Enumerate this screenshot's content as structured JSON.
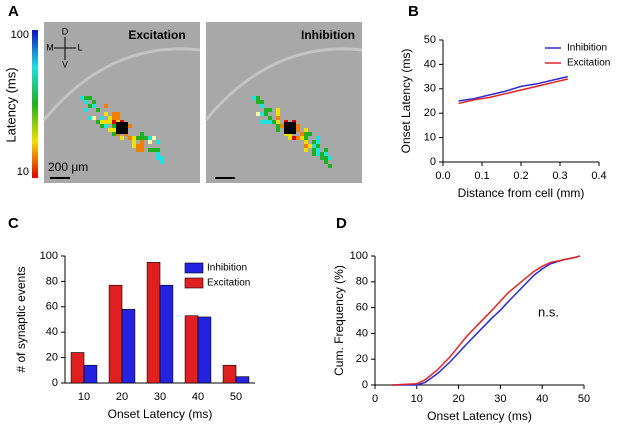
{
  "panel_labels": [
    "A",
    "B",
    "C",
    "D"
  ],
  "panel_a": {
    "colorbar_label": "Latency (ms)",
    "colorbar_max": "100",
    "colorbar_min": "10",
    "images": [
      "Excitation",
      "Inhibition"
    ],
    "compass": [
      "D",
      "M",
      "L",
      "V"
    ],
    "scale_bar": "200 μm"
  },
  "chart_data": [
    {
      "type": "line",
      "xlabel": "Distance from cell (mm)",
      "ylabel": "Onset Latency (ms)",
      "x": [
        0.04,
        0.08,
        0.12,
        0.16,
        0.2,
        0.24,
        0.28,
        0.32
      ],
      "series": [
        {
          "name": "Inhibition",
          "color": "#2b2bd6",
          "values": [
            25,
            26,
            27.5,
            29,
            31,
            32,
            33.5,
            35
          ]
        },
        {
          "name": "Excitation",
          "color": "#e02424",
          "values": [
            24,
            25.5,
            26.5,
            28,
            29.5,
            31,
            32.5,
            34
          ]
        }
      ],
      "xlim": [
        0,
        0.4
      ],
      "xticks": [
        {
          "value": 0,
          "label": "0.0"
        },
        0.1,
        0.2,
        0.3,
        0.4
      ],
      "ylim": [
        0,
        50
      ],
      "yticks": [
        0,
        10,
        20,
        30,
        40,
        50
      ],
      "legend": "upper right"
    },
    {
      "type": "bar",
      "xlabel": "Onset Latency (ms)",
      "ylabel": "# of synaptic events",
      "categories": [
        "10",
        "20",
        "30",
        "40",
        "50"
      ],
      "series": [
        {
          "name": "Inhibition",
          "color": "#2424e0",
          "values": [
            14,
            58,
            77,
            52,
            5
          ]
        },
        {
          "name": "Excitation",
          "color": "#e02020",
          "values": [
            24,
            77,
            95,
            53,
            14
          ]
        }
      ],
      "bar_order": [
        "Excitation",
        "Inhibition"
      ],
      "ylim": [
        0,
        100
      ],
      "yticks": [
        0,
        20,
        40,
        60,
        80,
        100
      ],
      "legend": "upper right"
    },
    {
      "type": "line",
      "xlabel": "Onset Latency (ms)",
      "ylabel": "Cum. Frequency (%)",
      "annotation": "n.s.",
      "x": [
        4,
        10,
        12,
        15,
        18,
        20,
        22,
        25,
        28,
        30,
        32,
        35,
        38,
        40,
        42,
        45,
        48,
        49
      ],
      "series": [
        {
          "name": "Inhibition",
          "color": "#2b2bd6",
          "values": [
            0,
            0,
            2,
            9,
            18,
            25,
            32,
            42,
            52,
            58,
            65,
            75,
            85,
            90,
            94,
            97,
            99,
            100
          ]
        },
        {
          "name": "Excitation",
          "color": "#e02424",
          "values": [
            0,
            1,
            4,
            12,
            22,
            30,
            38,
            48,
            58,
            65,
            72,
            80,
            88,
            92,
            95,
            97,
            99,
            100
          ]
        }
      ],
      "xlim": [
        0,
        50
      ],
      "xticks": [
        0,
        10,
        20,
        30,
        40,
        50
      ],
      "ylim": [
        0,
        100
      ],
      "yticks": [
        0,
        20,
        40,
        60,
        80,
        100
      ]
    }
  ]
}
